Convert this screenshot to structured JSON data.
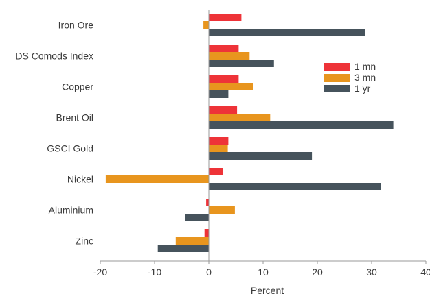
{
  "chart_data": {
    "type": "bar",
    "orientation": "horizontal",
    "categories": [
      "Iron Ore",
      "DS Comods Index",
      "Copper",
      "Brent Oil",
      "GSCI Gold",
      "Nickel",
      "Aluminium",
      "Zinc"
    ],
    "series": [
      {
        "name": "1 mn",
        "color": "#ee3338",
        "values": [
          6.0,
          5.5,
          5.5,
          5.2,
          3.6,
          2.6,
          -0.5,
          -0.8
        ]
      },
      {
        "name": "3 mn",
        "color": "#e8951e",
        "values": [
          -1.0,
          7.5,
          8.1,
          11.3,
          3.5,
          -19.0,
          4.8,
          -6.1
        ]
      },
      {
        "name": "1 yr",
        "color": "#46535c",
        "values": [
          28.8,
          12.0,
          3.6,
          34.0,
          19.0,
          31.7,
          -4.3,
          -9.4
        ]
      }
    ],
    "xlabel": "Percent",
    "xlim": [
      -20,
      40
    ],
    "xticks": [
      "-20",
      "-10",
      "0",
      "10",
      "20",
      "30",
      "40"
    ],
    "legend_position": "right",
    "grid": false
  }
}
